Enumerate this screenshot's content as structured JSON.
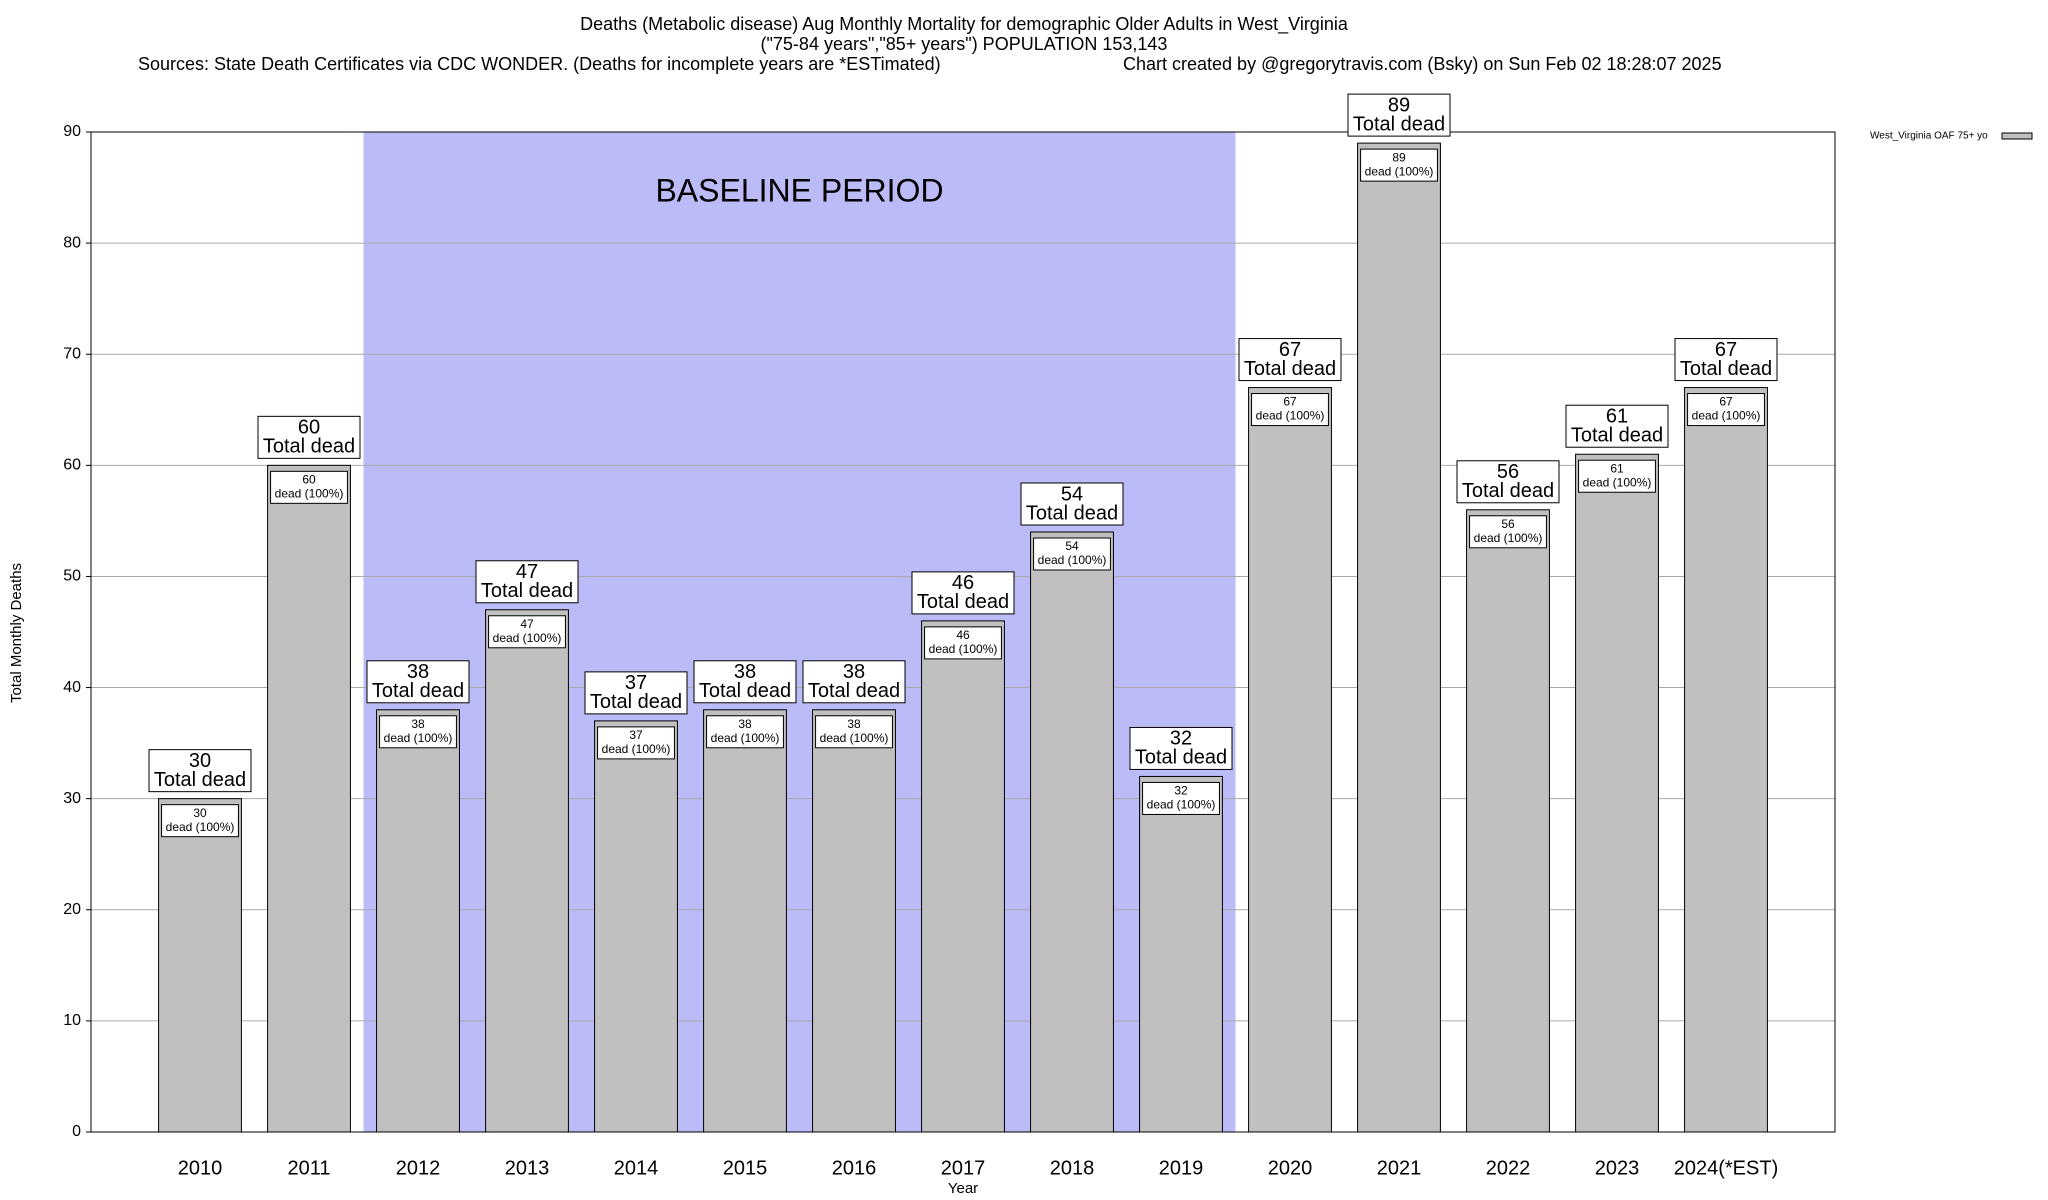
{
  "chart_data": {
    "type": "bar",
    "title": "Deaths (Metabolic disease) Aug Monthly Mortality for demographic Older Adults in West_Virginia",
    "subtitle": "(\"75-84 years\",\"85+ years\") POPULATION 153,143",
    "source": "Sources: State Death Certificates via CDC WONDER. (Deaths for incomplete years are *ESTimated)",
    "credit": "Chart created by @gregorytravis.com (Bsky) on Sun Feb 02 18:28:07 2025",
    "x_label": "Year",
    "y_label": "Total Monthly Deaths",
    "categories": [
      "2010",
      "2011",
      "2012",
      "2013",
      "2014",
      "2015",
      "2016",
      "2017",
      "2018",
      "2019",
      "2020",
      "2021",
      "2022",
      "2023",
      "2024(*EST)"
    ],
    "series": [
      {
        "name": "West_Virginia OAF 75+ yo",
        "color": "#c0c0c0",
        "values": [
          30,
          60,
          38,
          47,
          37,
          38,
          38,
          46,
          54,
          32,
          67,
          89,
          56,
          61,
          67
        ]
      }
    ],
    "total_label": "Total dead",
    "inner_label": "dead (100%)",
    "baseline": {
      "label": "BASELINE PERIOD",
      "from": "2012",
      "to": "2019",
      "color": "#bbbbf8"
    },
    "ylim": [
      0,
      90
    ],
    "yticks": [
      0,
      10,
      20,
      30,
      40,
      50,
      60,
      70,
      80,
      90
    ],
    "grid": true,
    "legend": "top-right"
  }
}
